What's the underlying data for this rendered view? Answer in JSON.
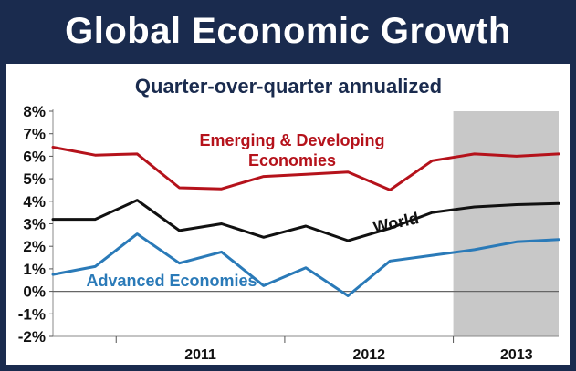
{
  "banner_title": "Global Economic Growth",
  "chart_data": {
    "type": "line",
    "title": "Quarter-over-quarter annualized",
    "xlabel": "",
    "ylabel": "",
    "ylim": [
      -2,
      8
    ],
    "y_ticks": [
      "8%",
      "7%",
      "6%",
      "5%",
      "4%",
      "3%",
      "2%",
      "1%",
      "0%",
      "-1%",
      "-2%"
    ],
    "x_tick_labels": [
      "2011",
      "2012",
      "2013"
    ],
    "x": [
      "2010Q3",
      "2010Q4",
      "2011Q1",
      "2011Q2",
      "2011Q3",
      "2011Q4",
      "2012Q1",
      "2012Q2",
      "2012Q3",
      "2012Q4",
      "2013Q1",
      "2013Q2",
      "2013Q3"
    ],
    "shaded_region": {
      "from": "2012Q4",
      "to": "2013Q3",
      "color": "#c8c8c8",
      "note": "forecast period shading"
    },
    "zero_line": true,
    "series": [
      {
        "name": "Emerging & Developing Economies",
        "label_lines": [
          "Emerging & Developing",
          "Economies"
        ],
        "color": "#b5121b",
        "values": [
          6.4,
          6.05,
          6.1,
          4.6,
          4.55,
          5.1,
          5.2,
          5.3,
          4.5,
          5.8,
          6.1,
          6.0,
          6.1
        ]
      },
      {
        "name": "World",
        "label_lines": [
          "World"
        ],
        "color": "#111111",
        "values": [
          3.2,
          3.2,
          4.05,
          2.7,
          3.0,
          2.4,
          2.9,
          2.25,
          2.8,
          3.5,
          3.75,
          3.85,
          3.9
        ]
      },
      {
        "name": "Advanced Economies",
        "label_lines": [
          "Advanced Economies"
        ],
        "color": "#2a7ab8",
        "values": [
          0.75,
          1.1,
          2.55,
          1.25,
          1.75,
          0.25,
          1.05,
          -0.2,
          1.35,
          1.6,
          1.85,
          2.2,
          2.3
        ]
      }
    ]
  }
}
